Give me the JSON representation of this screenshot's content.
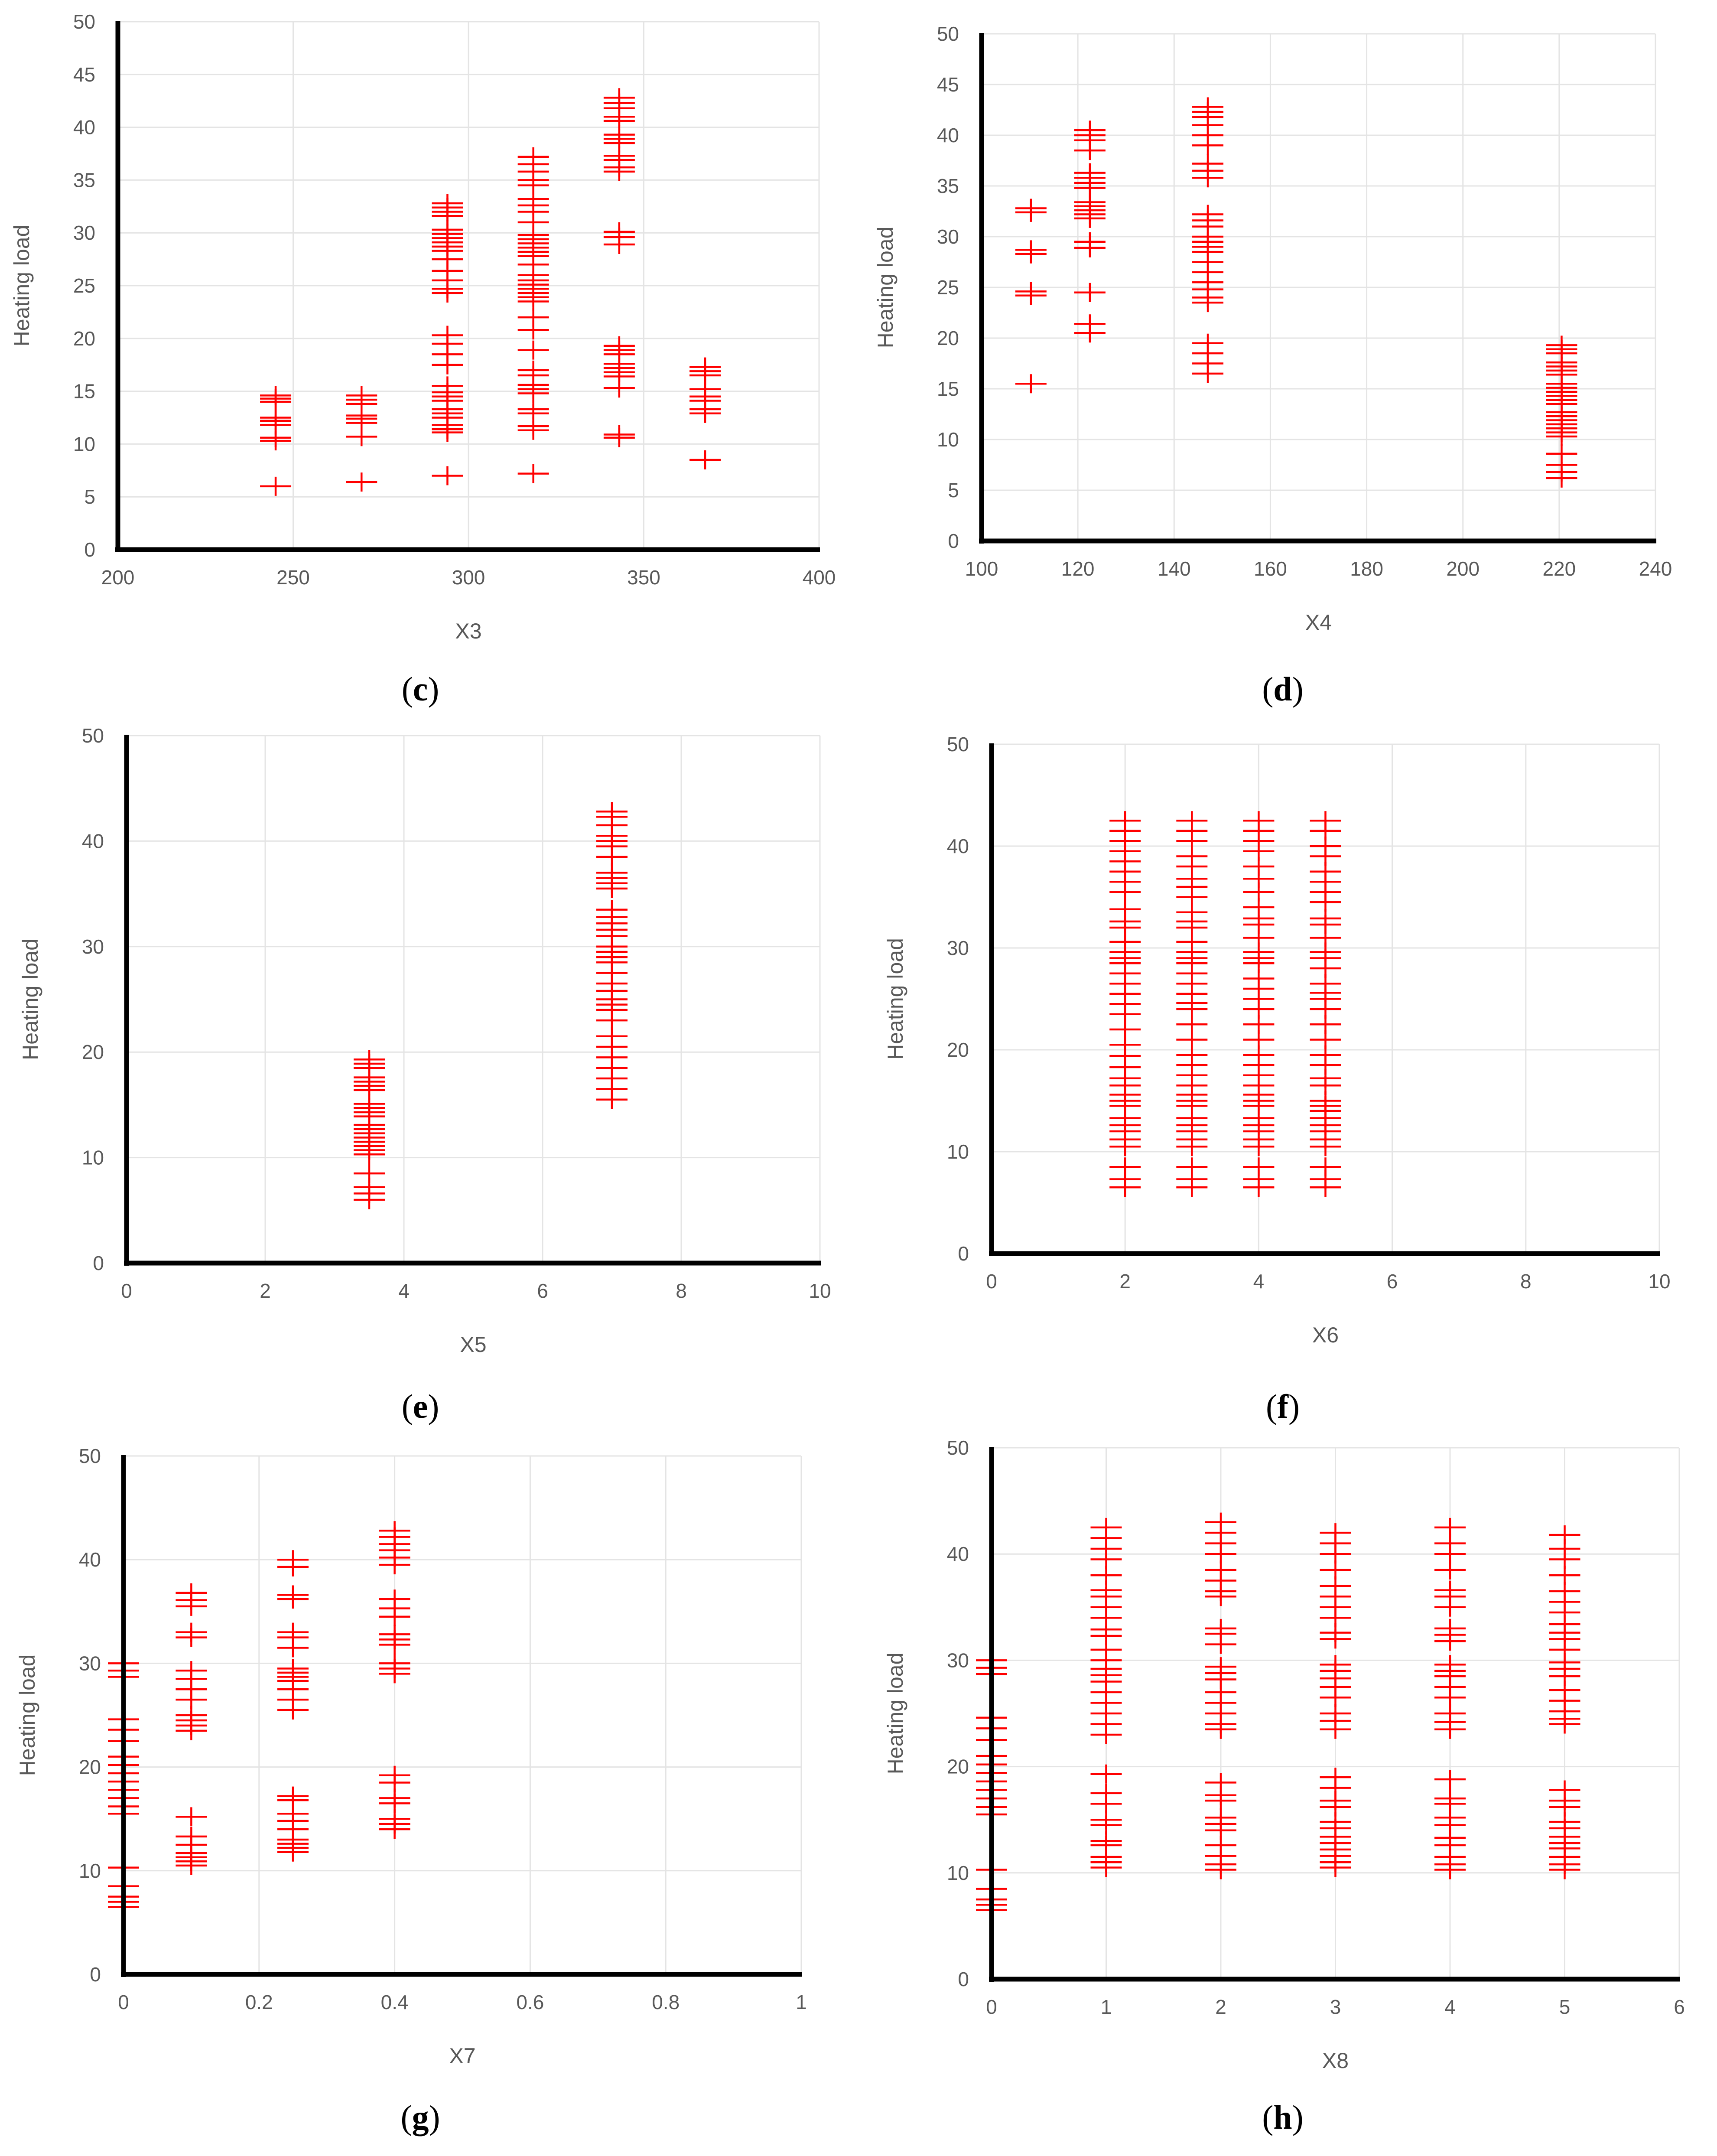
{
  "chart_data": [
    {
      "id": "c",
      "type": "scatter",
      "caption": "c",
      "xlabel": "X3",
      "ylabel": "Heating load",
      "xlim": [
        200,
        400
      ],
      "ylim": [
        0,
        50
      ],
      "xticks": [
        200,
        250,
        300,
        350,
        400
      ],
      "yticks": [
        0,
        5,
        10,
        15,
        20,
        25,
        30,
        35,
        40,
        45,
        50
      ],
      "marker": "+",
      "color": "#ff0000",
      "grid": true,
      "series": [
        {
          "x": 245,
          "y": [
            6.0,
            10.3,
            10.6,
            11.8,
            12.2,
            12.5,
            14.0,
            14.3,
            14.6
          ]
        },
        {
          "x": 269.5,
          "y": [
            6.4,
            10.7,
            12.0,
            12.4,
            12.7,
            13.8,
            14.2,
            14.6
          ]
        },
        {
          "x": 294,
          "y": [
            7.0,
            11.1,
            11.4,
            11.8,
            12.5,
            12.9,
            13.3,
            14.1,
            14.5,
            14.9,
            15.5,
            17.5,
            18.5,
            19.5,
            20.3,
            24.3,
            24.7,
            25.5,
            26.4,
            27.5,
            28.3,
            28.7,
            29.1,
            29.5,
            29.9,
            30.3,
            31.6,
            32.0,
            32.4,
            32.8
          ]
        },
        {
          "x": 318.5,
          "y": [
            7.2,
            11.3,
            11.7,
            12.9,
            13.3,
            14.8,
            15.2,
            15.6,
            16.5,
            17.0,
            18.9,
            20.8,
            22.0,
            23.5,
            23.9,
            24.3,
            24.7,
            25.1,
            25.5,
            26.0,
            27.0,
            27.8,
            28.2,
            28.6,
            29.0,
            29.4,
            29.8,
            31.0,
            32.0,
            32.6,
            33.2,
            34.5,
            35.0,
            35.8,
            36.5,
            37.2
          ]
        },
        {
          "x": 343,
          "y": [
            10.6,
            10.9,
            15.3,
            16.4,
            16.8,
            17.2,
            17.6,
            18.5,
            18.9,
            19.3,
            28.9,
            29.6,
            30.1,
            35.8,
            36.2,
            36.9,
            37.3,
            38.5,
            38.9,
            39.3,
            40.6,
            41.0,
            41.8,
            42.3,
            42.8
          ]
        },
        {
          "x": 367.5,
          "y": [
            8.5,
            12.9,
            13.3,
            14.1,
            14.5,
            15.2,
            16.5,
            16.9,
            17.3
          ]
        }
      ]
    },
    {
      "id": "d",
      "type": "scatter",
      "caption": "d",
      "xlabel": "X4",
      "ylabel": "Heating load",
      "xlim": [
        100,
        240
      ],
      "ylim": [
        0,
        50
      ],
      "xticks": [
        100,
        120,
        140,
        160,
        180,
        200,
        220,
        240
      ],
      "yticks": [
        0,
        5,
        10,
        15,
        20,
        25,
        30,
        35,
        40,
        45,
        50
      ],
      "marker": "+",
      "color": "#ff0000",
      "grid": true,
      "series": [
        {
          "x": 110.25,
          "y": [
            15.5,
            24.2,
            24.6,
            28.3,
            28.7,
            32.4,
            32.8
          ]
        },
        {
          "x": 122.5,
          "y": [
            20.5,
            21.4,
            24.5,
            28.9,
            29.5,
            31.8,
            32.2,
            32.6,
            33.0,
            33.4,
            34.8,
            35.3,
            35.8,
            36.3,
            38.5,
            39.5,
            40.0,
            40.5
          ]
        },
        {
          "x": 147,
          "y": [
            16.5,
            17.5,
            18.5,
            19.5,
            23.5,
            24.0,
            24.8,
            25.5,
            26.5,
            27.5,
            28.5,
            29.0,
            29.5,
            30.0,
            31.0,
            31.6,
            32.2,
            35.8,
            36.5,
            37.2,
            39.0,
            40.0,
            41.0,
            41.8,
            42.3,
            42.8
          ]
        },
        {
          "x": 220.5,
          "y": [
            6.2,
            6.8,
            7.5,
            8.6,
            10.3,
            10.7,
            11.1,
            11.5,
            11.9,
            12.3,
            12.7,
            13.5,
            13.9,
            14.3,
            14.7,
            15.1,
            15.5,
            16.4,
            16.8,
            17.2,
            17.6,
            18.5,
            18.9,
            19.3
          ]
        }
      ]
    },
    {
      "id": "e",
      "type": "scatter",
      "caption": "e",
      "xlabel": "X5",
      "ylabel": "Heating load",
      "xlim": [
        0,
        10
      ],
      "ylim": [
        0,
        50
      ],
      "xticks": [
        0,
        2,
        4,
        6,
        8,
        10
      ],
      "yticks": [
        0,
        10,
        20,
        30,
        40,
        50
      ],
      "marker": "+",
      "color": "#ff0000",
      "grid": true,
      "series": [
        {
          "x": 3.5,
          "y": [
            6.0,
            6.6,
            7.2,
            8.5,
            10.3,
            10.7,
            11.1,
            11.5,
            11.9,
            12.3,
            12.7,
            13.1,
            13.9,
            14.3,
            14.7,
            15.1,
            16.4,
            16.8,
            17.2,
            17.6,
            18.5,
            18.9,
            19.3
          ]
        },
        {
          "x": 7,
          "y": [
            15.5,
            16.5,
            17.5,
            18.5,
            19.5,
            20.5,
            21.5,
            23.0,
            24.0,
            24.5,
            25.0,
            25.8,
            26.5,
            27.5,
            28.5,
            29.0,
            29.5,
            30.0,
            31.0,
            31.6,
            32.2,
            32.8,
            33.5,
            35.5,
            36.0,
            36.5,
            37.0,
            38.5,
            39.5,
            40.0,
            40.5,
            41.5,
            42.3,
            42.8
          ]
        }
      ]
    },
    {
      "id": "f",
      "type": "scatter",
      "caption": "f",
      "xlabel": "X6",
      "ylabel": "Heating load",
      "xlim": [
        0,
        10
      ],
      "ylim": [
        0,
        50
      ],
      "xticks": [
        0,
        2,
        4,
        6,
        8,
        10
      ],
      "yticks": [
        0,
        10,
        20,
        30,
        40,
        50
      ],
      "marker": "+",
      "color": "#ff0000",
      "grid": true,
      "series": [
        {
          "x": 2,
          "y": [
            6.5,
            7.3,
            8.5,
            10.5,
            11.2,
            12.0,
            12.6,
            13.3,
            14.5,
            15.0,
            15.6,
            16.5,
            17.2,
            18.3,
            19.4,
            20.5,
            22.0,
            23.5,
            24.5,
            25.5,
            26.5,
            27.5,
            28.5,
            29.0,
            29.6,
            30.6,
            32.0,
            32.6,
            33.8,
            35.5,
            36.5,
            37.5,
            38.5,
            39.5,
            40.5,
            41.5,
            42.5
          ]
        },
        {
          "x": 3,
          "y": [
            6.5,
            7.3,
            8.5,
            10.5,
            11.2,
            12.0,
            12.6,
            13.3,
            14.5,
            15.0,
            15.6,
            16.5,
            17.5,
            18.5,
            19.5,
            21.0,
            22.5,
            24.0,
            24.6,
            25.5,
            26.5,
            27.5,
            28.5,
            29.0,
            29.6,
            30.6,
            32.0,
            32.6,
            33.5,
            35.0,
            36.0,
            36.8,
            38.0,
            39.0,
            40.5,
            41.5,
            42.5
          ]
        },
        {
          "x": 4,
          "y": [
            6.5,
            7.3,
            8.5,
            10.5,
            11.2,
            12.0,
            12.6,
            13.3,
            14.5,
            15.0,
            15.6,
            16.5,
            17.5,
            18.5,
            19.5,
            21.0,
            22.5,
            24.0,
            25.0,
            26.0,
            27.0,
            28.5,
            29.0,
            29.6,
            31.0,
            32.3,
            32.9,
            34.0,
            35.5,
            36.8,
            38.0,
            39.5,
            40.5,
            41.5,
            42.5
          ]
        },
        {
          "x": 5,
          "y": [
            6.5,
            7.3,
            8.5,
            10.5,
            11.2,
            12.0,
            12.6,
            13.3,
            14.0,
            14.5,
            15.0,
            16.5,
            17.2,
            18.5,
            19.5,
            21.0,
            22.5,
            24.0,
            25.0,
            25.6,
            26.5,
            28.0,
            29.0,
            29.6,
            31.0,
            32.3,
            32.9,
            34.5,
            35.5,
            36.5,
            37.5,
            39.0,
            40.0,
            41.5,
            42.5
          ]
        }
      ]
    },
    {
      "id": "g",
      "type": "scatter",
      "caption": "g",
      "xlabel": "X7",
      "ylabel": "Heating load",
      "xlim": [
        0,
        1
      ],
      "ylim": [
        0,
        50
      ],
      "xticks": [
        0,
        0.2,
        0.4,
        0.6,
        0.8,
        1
      ],
      "yticks": [
        0,
        10,
        20,
        30,
        40,
        50
      ],
      "marker": "+",
      "color": "#ff0000",
      "grid": true,
      "series": [
        {
          "x": 0,
          "y": [
            6.5,
            7.0,
            7.5,
            8.5,
            10.3,
            15.5,
            16.2,
            17.0,
            17.8,
            18.6,
            19.4,
            20.2,
            21.0,
            22.5,
            23.6,
            24.6,
            28.7,
            29.3,
            30.0
          ]
        },
        {
          "x": 0.1,
          "y": [
            10.5,
            10.9,
            11.3,
            11.7,
            12.5,
            13.3,
            15.2,
            23.5,
            24.0,
            24.5,
            25.0,
            26.5,
            27.5,
            28.5,
            29.3,
            32.5,
            33.0,
            35.5,
            36.1,
            36.8
          ]
        },
        {
          "x": 0.25,
          "y": [
            11.8,
            12.2,
            12.6,
            13.0,
            14.0,
            14.8,
            15.5,
            16.8,
            17.2,
            25.5,
            26.5,
            27.5,
            28.3,
            28.7,
            29.1,
            29.5,
            31.5,
            32.5,
            33.0,
            36.2,
            36.6,
            39.3,
            40.0
          ]
        },
        {
          "x": 0.4,
          "y": [
            14.0,
            14.5,
            15.0,
            16.5,
            17.0,
            18.5,
            19.2,
            29.0,
            29.5,
            30.0,
            31.8,
            32.3,
            32.8,
            34.5,
            35.3,
            36.2,
            39.5,
            40.2,
            40.9,
            41.5,
            42.2,
            42.8
          ]
        }
      ]
    },
    {
      "id": "h",
      "type": "scatter",
      "caption": "h",
      "xlabel": "X8",
      "ylabel": "Heating load",
      "xlim": [
        0,
        6
      ],
      "ylim": [
        0,
        50
      ],
      "xticks": [
        0,
        1,
        2,
        3,
        4,
        5,
        6
      ],
      "yticks": [
        0,
        10,
        20,
        30,
        40,
        50
      ],
      "marker": "+",
      "color": "#ff0000",
      "grid": true,
      "series": [
        {
          "x": 0,
          "y": [
            6.5,
            7.0,
            7.5,
            8.5,
            10.3,
            15.5,
            16.2,
            17.0,
            17.8,
            18.6,
            19.4,
            20.2,
            21.0,
            22.5,
            23.6,
            24.6,
            28.7,
            29.3,
            30.0
          ]
        },
        {
          "x": 1,
          "y": [
            10.5,
            11.0,
            11.5,
            12.6,
            13.0,
            14.5,
            15.0,
            16.5,
            17.5,
            19.3,
            23.0,
            24.0,
            25.0,
            26.0,
            27.0,
            28.0,
            28.6,
            29.2,
            30.0,
            31.0,
            32.3,
            32.9,
            34.0,
            35.0,
            36.0,
            36.6,
            38.0,
            39.5,
            40.5,
            41.5,
            42.5
          ]
        },
        {
          "x": 2,
          "y": [
            10.3,
            10.8,
            11.6,
            12.6,
            14.0,
            14.6,
            15.2,
            16.8,
            17.3,
            18.5,
            23.5,
            24.0,
            25.0,
            26.0,
            27.0,
            28.2,
            28.8,
            29.4,
            31.5,
            32.5,
            33.0,
            36.0,
            36.5,
            37.5,
            38.5,
            40.0,
            41.0,
            42.0,
            43.0
          ]
        },
        {
          "x": 3,
          "y": [
            10.5,
            11.0,
            11.6,
            12.2,
            12.8,
            13.4,
            14.2,
            14.8,
            16.2,
            16.8,
            18.0,
            19.0,
            23.5,
            24.3,
            25.0,
            26.5,
            27.5,
            28.3,
            29.0,
            29.6,
            32.0,
            32.6,
            34.0,
            35.0,
            36.0,
            37.0,
            38.5,
            40.0,
            41.0,
            42.0
          ]
        },
        {
          "x": 4,
          "y": [
            10.3,
            10.8,
            11.5,
            12.6,
            13.3,
            14.5,
            15.2,
            16.5,
            17.0,
            18.8,
            23.5,
            24.2,
            25.0,
            26.5,
            27.5,
            28.5,
            29.0,
            29.6,
            31.8,
            32.4,
            33.0,
            35.0,
            36.0,
            36.6,
            38.5,
            40.0,
            41.0,
            42.5
          ]
        },
        {
          "x": 5,
          "y": [
            10.3,
            10.8,
            11.5,
            12.3,
            12.8,
            13.4,
            14.2,
            14.8,
            16.2,
            16.8,
            17.8,
            24.0,
            24.5,
            25.2,
            26.2,
            27.2,
            28.5,
            29.2,
            29.8,
            31.0,
            32.0,
            32.6,
            33.4,
            34.5,
            35.5,
            36.5,
            38.0,
            39.5,
            40.5,
            41.8
          ]
        }
      ]
    }
  ]
}
